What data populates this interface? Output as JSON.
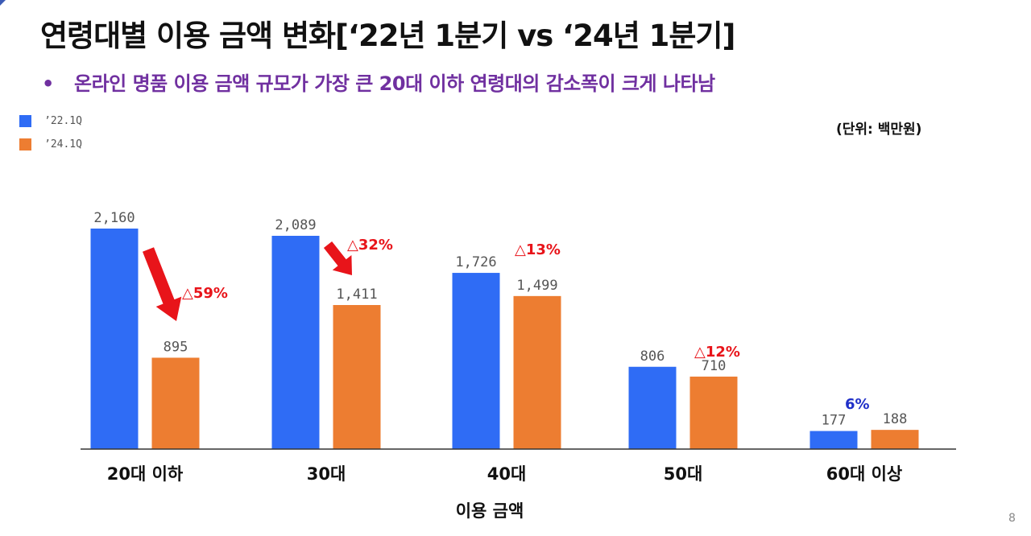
{
  "page": {
    "title": "연령대별 이용 금액 변화[‘22년 1분기 vs ‘24년 1분기]",
    "bullet": "•",
    "subtitle": "온라인 명품 이용 금액 규모가 가장 큰 20대 이하 연령대의 감소폭이 크게 나타남",
    "unit": "(단위: 백만원)",
    "page_number": "8"
  },
  "colors": {
    "series_22": "#2f6cf5",
    "series_24": "#ed7d31",
    "decrease": "#e8141a",
    "increase": "#1f2fc8",
    "axis": "#333333",
    "value_label": "#555555"
  },
  "chart_data": {
    "type": "bar",
    "title": "연령대별 이용 금액 변화[‘22년 1분기 vs ‘24년 1분기]",
    "xlabel": "이용 금액",
    "ylabel": "",
    "unit": "백만원",
    "ylim": [
      0,
      2160
    ],
    "grid": false,
    "legend_position": "top-left",
    "categories": [
      "20대 이하",
      "30대",
      "40대",
      "50대",
      "60대 이상"
    ],
    "series": [
      {
        "name": "’22.1Q",
        "values": [
          2160,
          2089,
          1726,
          806,
          177
        ],
        "labels": [
          "2,160",
          "2,089",
          "1,726",
          "806",
          "177"
        ]
      },
      {
        "name": "’24.1Q",
        "values": [
          895,
          1411,
          1499,
          710,
          188
        ],
        "labels": [
          "895",
          "1,411",
          "1,499",
          "710",
          "188"
        ]
      }
    ],
    "annotations": [
      {
        "category": "20대 이하",
        "text": "△59%",
        "direction": "down",
        "arrow": true
      },
      {
        "category": "30대",
        "text": "△32%",
        "direction": "down",
        "arrow": true
      },
      {
        "category": "40대",
        "text": "△13%",
        "direction": "down",
        "arrow": false
      },
      {
        "category": "50대",
        "text": "△12%",
        "direction": "down",
        "arrow": false
      },
      {
        "category": "60대 이상",
        "text": "6%",
        "direction": "up",
        "arrow": false
      }
    ]
  }
}
